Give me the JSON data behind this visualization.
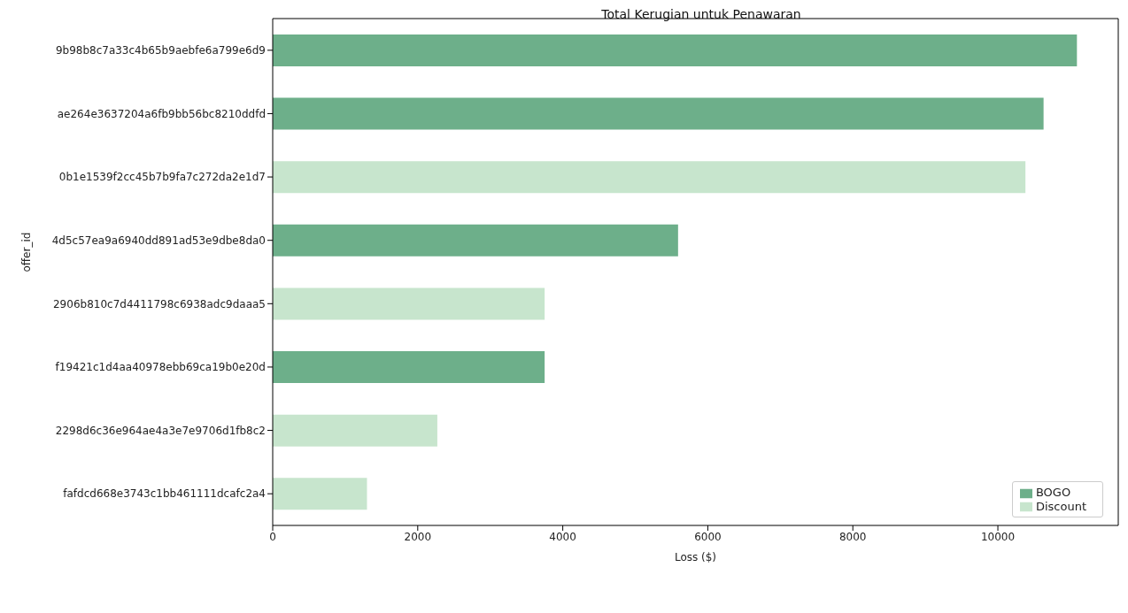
{
  "chart_data": {
    "type": "bar",
    "orientation": "horizontal",
    "stacked": true,
    "title": "Total Kerugian untuk Penawaran",
    "xlabel": "Loss ($)",
    "ylabel": "offer_id",
    "categories": [
      "9b98b8c7a33c4b65b9aebfe6a799e6d9",
      "ae264e3637204a6fb9bb56bc8210ddfd",
      "0b1e1539f2cc45b7b9fa7c272da2e1d7",
      "4d5c57ea9a6940dd891ad53e9dbe8da0",
      "2906b810c7d4411798c6938adc9daaa5",
      "f19421c1d4aa40978ebb69ca19b0e20d",
      "2298d6c36e964ae4a3e7e9706d1fb8c2",
      "fafdcd668e3743c1bb461111dcafc2a4"
    ],
    "series": [
      {
        "name": "BOGO",
        "color": "#6daf8a",
        "values": [
          11090,
          10630,
          null,
          5590,
          null,
          3750,
          null,
          null
        ]
      },
      {
        "name": "Discount",
        "color": "#c7e5cd",
        "values": [
          null,
          null,
          10380,
          null,
          3750,
          null,
          2270,
          1300
        ]
      }
    ],
    "xlim": [
      0,
      11660
    ],
    "xticks": [
      0,
      2000,
      4000,
      6000,
      8000,
      10000
    ],
    "grid": false,
    "legend": "bottom right"
  }
}
